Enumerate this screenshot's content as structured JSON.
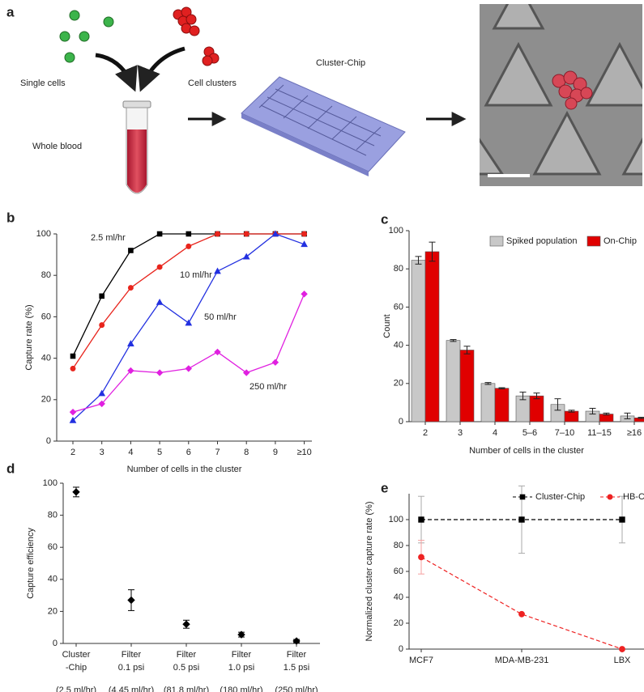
{
  "figure_a": {
    "panel": "a",
    "single": "Single cells",
    "clusters": "Cell clusters",
    "chip": "Cluster-Chip",
    "blood": "Whole blood"
  },
  "chart_data": [
    {
      "panel": "b",
      "type": "line",
      "x_label": "Number of cells in the cluster",
      "y_label": "Capture rate (%)",
      "categories": [
        "2",
        "3",
        "4",
        "5",
        "6",
        "7",
        "8",
        "9",
        "≥10"
      ],
      "ylim": [
        0,
        100
      ],
      "yticks": [
        0,
        20,
        40,
        60,
        80,
        100
      ],
      "series": [
        {
          "name": "2.5 ml/hr",
          "color": "#000000",
          "marker": "square",
          "values": [
            41,
            70,
            92,
            100,
            100,
            100,
            100,
            100,
            100
          ]
        },
        {
          "name": "10 ml/hr",
          "color": "#e8241c",
          "marker": "circle",
          "values": [
            35,
            56,
            74,
            84,
            94,
            100,
            100,
            100,
            100
          ]
        },
        {
          "name": "50 ml/hr",
          "color": "#2230e0",
          "marker": "triangle",
          "values": [
            10,
            23,
            47,
            67,
            57,
            82,
            89,
            100,
            95
          ]
        },
        {
          "name": "250 ml/hr",
          "color": "#e020e0",
          "marker": "diamond",
          "values": [
            14,
            18,
            34,
            33,
            35,
            43,
            33,
            38,
            71
          ]
        }
      ]
    },
    {
      "panel": "c",
      "type": "bar",
      "x_label": "Number of cells in the cluster",
      "y_label": "Count",
      "categories": [
        "2",
        "3",
        "4",
        "5–6",
        "7–10",
        "11–15",
        "≥16"
      ],
      "ylim": [
        0,
        100
      ],
      "yticks": [
        0,
        20,
        40,
        60,
        80,
        100
      ],
      "legend": "top-right",
      "series": [
        {
          "name": "Spiked population",
          "color": "#c8c8c8",
          "values": [
            84.5,
            42.5,
            20,
            13.5,
            9,
            5.5,
            3
          ],
          "errors": [
            2,
            0.5,
            0.5,
            2,
            3,
            1.5,
            1.5
          ]
        },
        {
          "name": "On-Chip",
          "color": "#e00000",
          "values": [
            89,
            37.5,
            17.5,
            13.5,
            5.5,
            4,
            2
          ],
          "errors": [
            5,
            2,
            0.3,
            1.5,
            0.5,
            0.5,
            0.3
          ]
        }
      ]
    },
    {
      "panel": "d",
      "type": "errorpoint",
      "y_label": "Capture efficiency",
      "categories": [
        [
          "Cluster",
          "-Chip",
          "(2.5 ml/hr)"
        ],
        [
          "Filter",
          "0.1 psi",
          "(4.45 ml/hr)"
        ],
        [
          "Filter",
          "0.5 psi",
          "(81.8 ml/hr)"
        ],
        [
          "Filter",
          "1.0 psi",
          "(180 ml/hr)"
        ],
        [
          "Filter",
          "1.5 psi",
          "(250 ml/hr)"
        ]
      ],
      "ylim": [
        0,
        100
      ],
      "yticks": [
        0,
        20,
        40,
        60,
        80,
        100
      ],
      "series": [
        {
          "color": "#000000",
          "marker": "diamond",
          "values": [
            94.5,
            27,
            12,
            5.5,
            1.5
          ],
          "errors": [
            3,
            6.5,
            2.5,
            1.5,
            1
          ]
        }
      ]
    },
    {
      "panel": "e",
      "type": "line",
      "y_label": "Normalized cluster capture rate (%)",
      "line_style": "dashed",
      "legend": "top",
      "categories": [
        "MCF7",
        "MDA-MB-231",
        "LBX"
      ],
      "ylim": [
        0,
        120
      ],
      "yticks": [
        0,
        20,
        40,
        60,
        80,
        100
      ],
      "series": [
        {
          "name": "Cluster-Chip",
          "color": "#000000",
          "error_color": "#aaaaaa",
          "marker": "square",
          "values": [
            100,
            100,
            100
          ],
          "errors": [
            18,
            26,
            18
          ]
        },
        {
          "name": "HB-Chip",
          "color": "#ee2222",
          "error_color": "#f4a0a0",
          "marker": "circle",
          "values": [
            71,
            27,
            0
          ],
          "errors": [
            13,
            0,
            0
          ]
        }
      ]
    }
  ]
}
